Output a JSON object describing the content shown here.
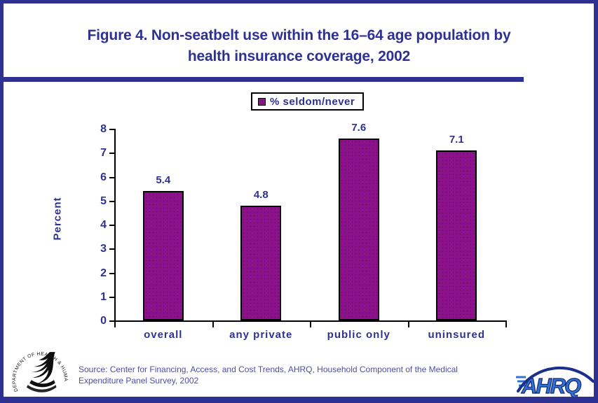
{
  "page": {
    "title_line1": "Figure 4. Non-seatbelt use within the 16–64 age population by",
    "title_line2": "health insurance coverage, 2002",
    "source_line1": "Source: Center for Financing, Access, and Cost Trends, AHRQ, Household Component of the Medical",
    "source_line2": "Expenditure Panel Survey, 2002"
  },
  "colors": {
    "navy": "#2E3192",
    "bar_purple": "#8C128C",
    "source_text": "#4D4DA6",
    "axis": "#000000",
    "ahrq_blue": "#2E74D8",
    "ahrq_dark": "#1B2E8C"
  },
  "logos": {
    "hhs_seal_text": "DEPARTMENT OF HEALTH & HUMAN SERVICES·USA",
    "ahrq_text": "AHRQ"
  },
  "chart_data": {
    "type": "bar",
    "categories": [
      "overall",
      "any private",
      "public only",
      "uninsured"
    ],
    "values": [
      5.4,
      4.8,
      7.6,
      7.1
    ],
    "data_labels": [
      "5.4",
      "4.8",
      "7.6",
      "7.1"
    ],
    "series_name": "% seldom/never",
    "legend": [
      {
        "label": "% seldom/never",
        "color": "#8C128C"
      }
    ],
    "legend_position": "top-center",
    "title": "Figure 4. Non-seatbelt use within the 16–64 age population by health insurance coverage, 2002",
    "xlabel": "",
    "ylabel": "Percent",
    "ylim": [
      0,
      8
    ],
    "yticks": [
      "0",
      "1",
      "2",
      "3",
      "4",
      "5",
      "6",
      "7",
      "8"
    ],
    "grid": false
  }
}
